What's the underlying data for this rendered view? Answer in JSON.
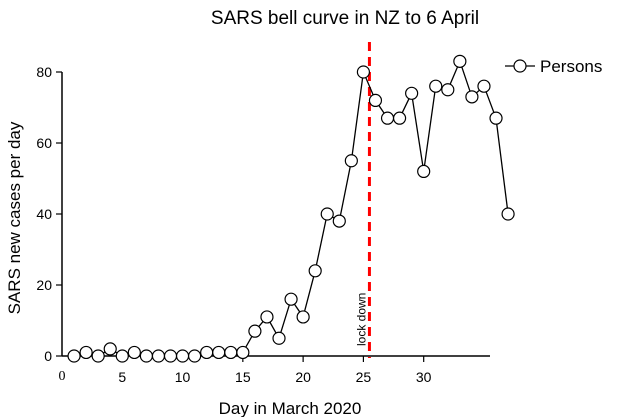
{
  "chart_data": {
    "type": "line",
    "title": "SARS bell curve in NZ to 6 April",
    "xlabel": "Day in March 2020",
    "ylabel": "SARS new cases per day",
    "xlim": [
      0,
      35.5
    ],
    "ylim": [
      0,
      80
    ],
    "x_ticks": [
      5,
      10,
      15,
      20,
      25,
      30
    ],
    "x_zero_label": "0",
    "y_ticks": [
      0,
      20,
      40,
      60,
      80
    ],
    "grid": false,
    "legend_position": "top-right",
    "series": [
      {
        "name": "Persons",
        "color": "#000000",
        "marker": "open-circle",
        "x": [
          1,
          2,
          3,
          4,
          5,
          6,
          7,
          8,
          9,
          10,
          11,
          12,
          13,
          14,
          15,
          16,
          17,
          18,
          19,
          20,
          21,
          22,
          23,
          24,
          25,
          26,
          27,
          28,
          29,
          30,
          31,
          32,
          33,
          34,
          35,
          36,
          37
        ],
        "y": [
          0,
          1,
          0,
          2,
          0,
          1,
          0,
          0,
          0,
          0,
          0,
          1,
          1,
          1,
          1,
          7,
          11,
          5,
          16,
          11,
          24,
          40,
          38,
          55,
          80,
          72,
          67,
          67,
          74,
          52,
          76,
          75,
          83,
          73,
          76,
          67,
          40
        ]
      }
    ],
    "annotations": [
      {
        "text": "lock down",
        "x": 25.5,
        "color": "#ff0000",
        "line_style": "dashed"
      }
    ]
  }
}
